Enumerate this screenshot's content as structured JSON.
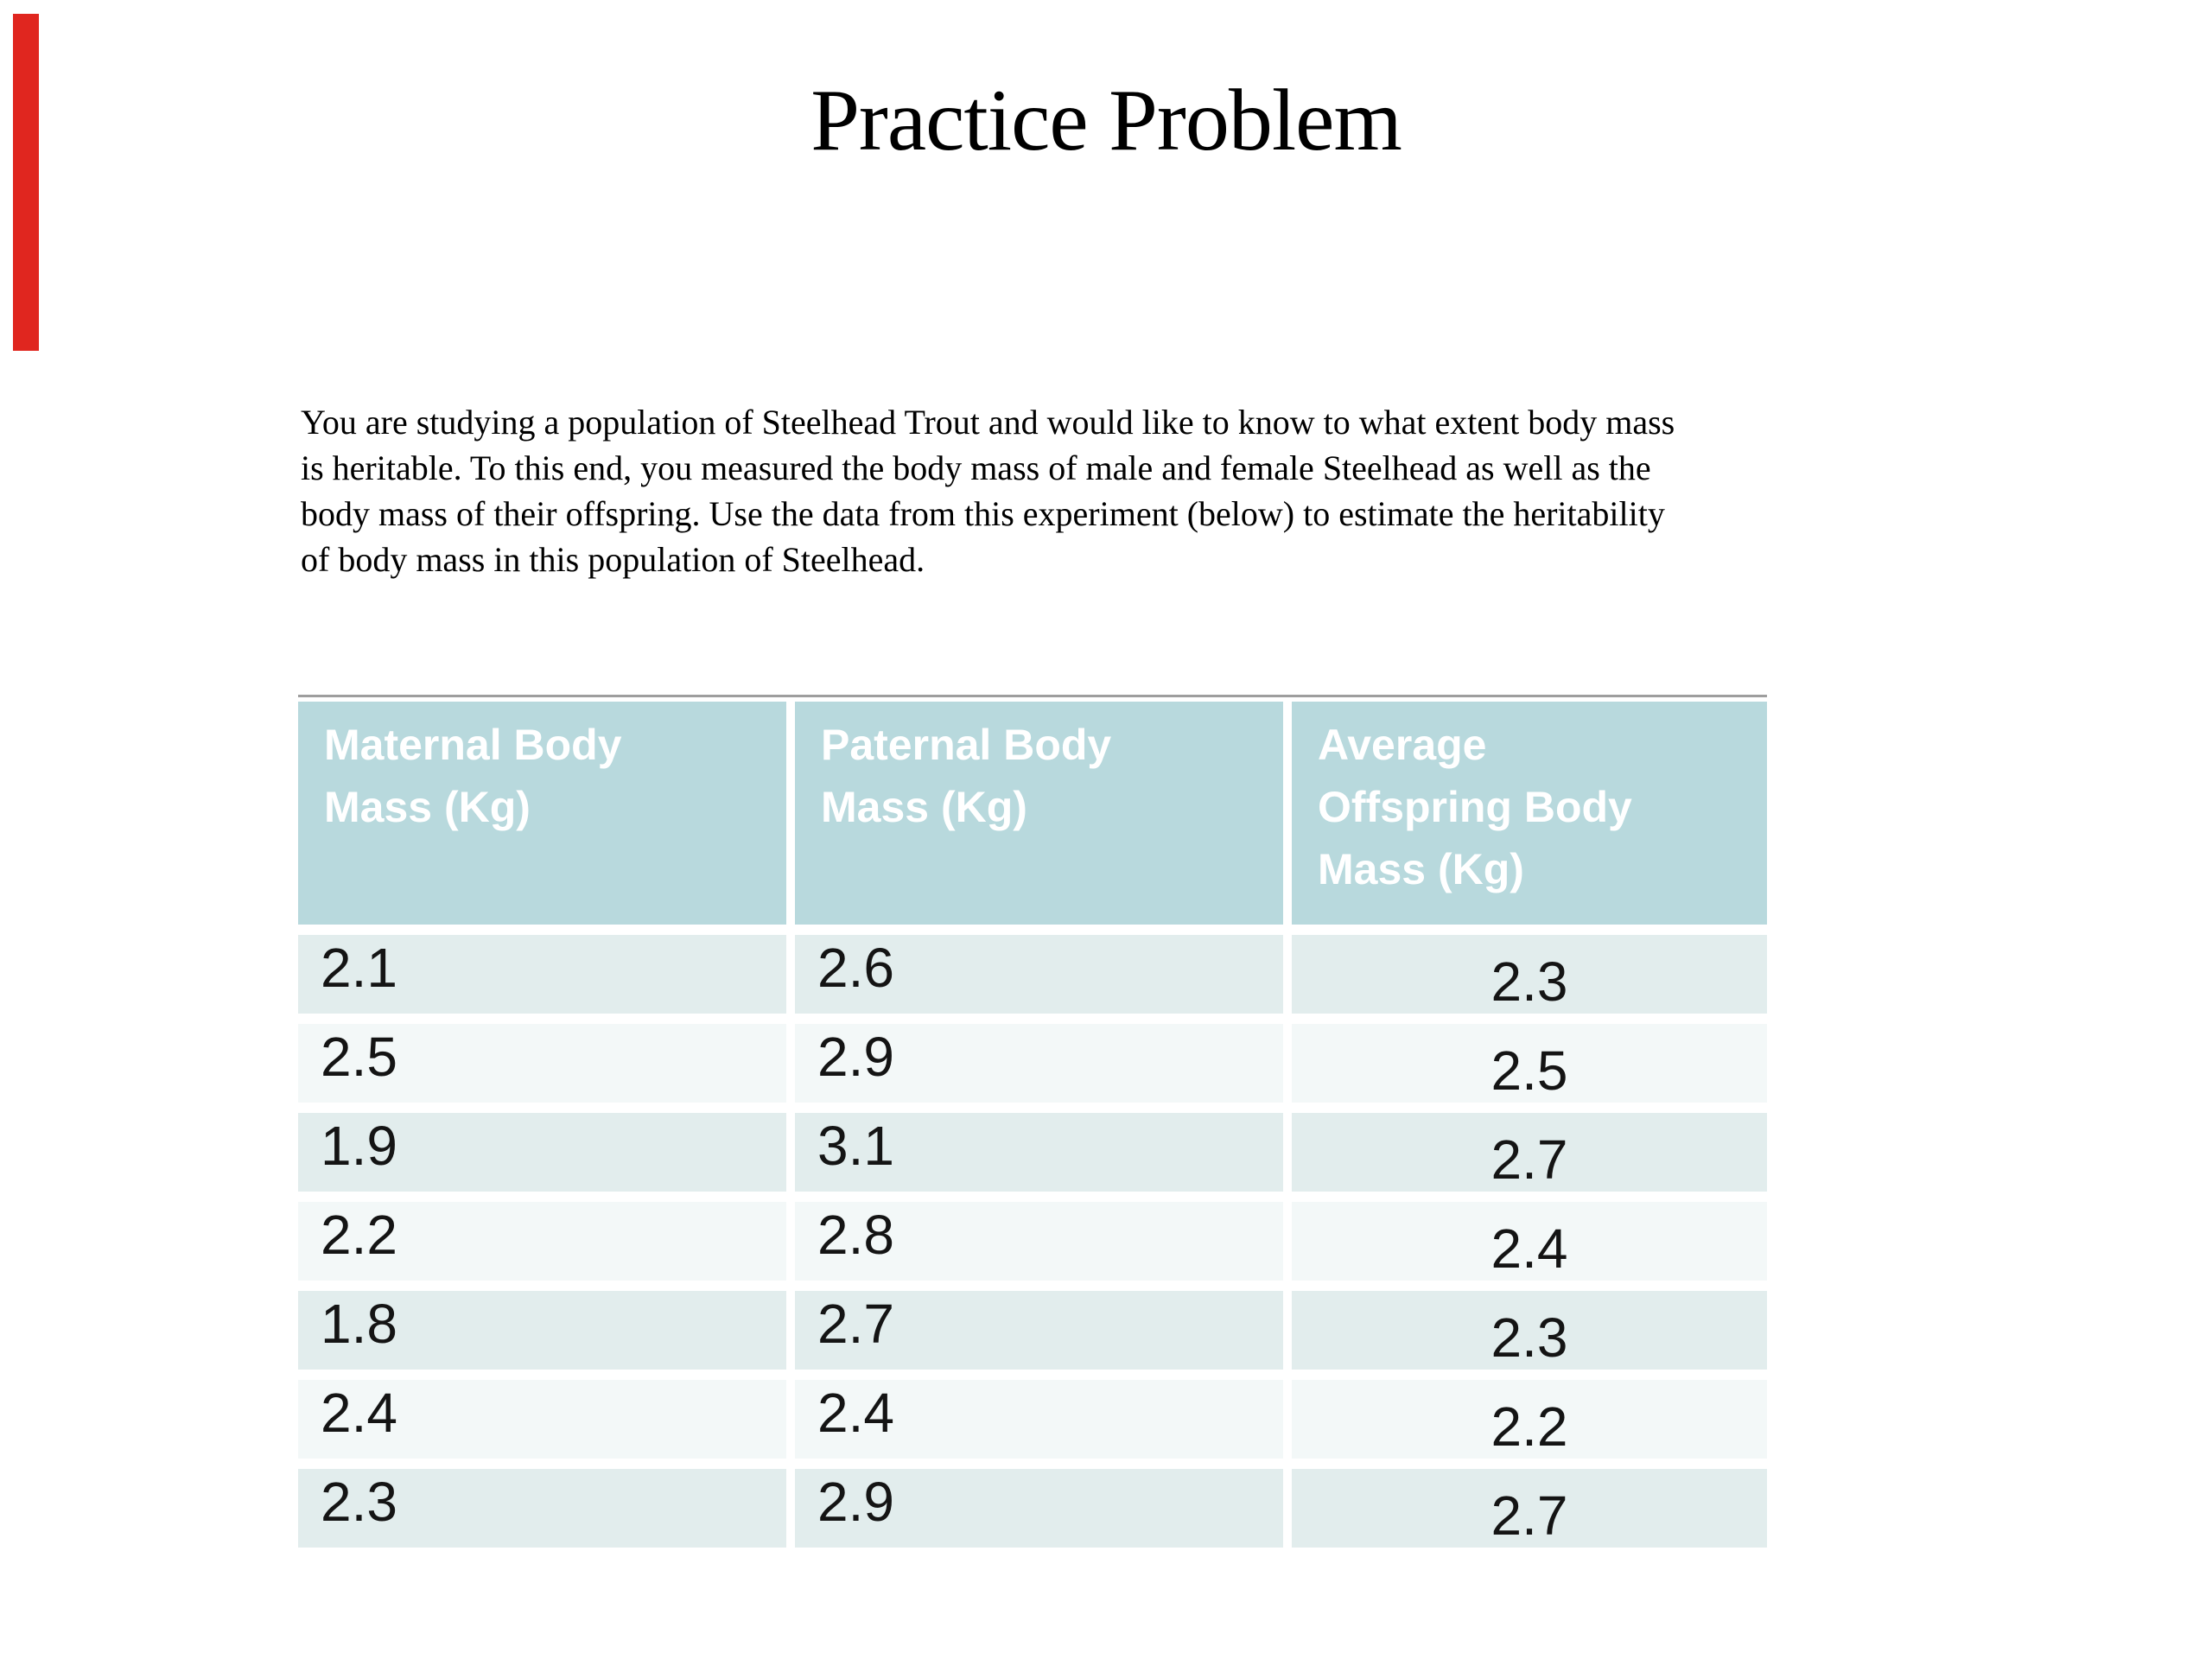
{
  "slide": {
    "title": "Practice Problem",
    "problem_text": "You are studying a population of Steelhead Trout and would like to know to what extent body mass\nis heritable. To this end, you measured the body mass of male and female Steelhead as well as the\nbody mass of their offspring. Use the data from this experiment (below) to estimate the heritability\nof body mass in this population of Steelhead."
  },
  "decor": {
    "red_bar_color": "#e0261f"
  },
  "table": {
    "headers": [
      "Maternal Body\nMass (Kg)",
      "Paternal Body\nMass (Kg)",
      "Average\nOffspring Body\nMass (Kg)"
    ],
    "rows": [
      [
        "2.1",
        "2.6",
        "2.3"
      ],
      [
        "2.5",
        "2.9",
        "2.5"
      ],
      [
        "1.9",
        "3.1",
        "2.7"
      ],
      [
        "2.2",
        "2.8",
        "2.4"
      ],
      [
        "1.8",
        "2.7",
        "2.3"
      ],
      [
        "2.4",
        "2.4",
        "2.2"
      ],
      [
        "2.3",
        "2.9",
        "2.7"
      ]
    ],
    "colors": {
      "header_bg": "#b8d9dd",
      "header_text": "#ffffff",
      "row_odd_bg": "#e2eded",
      "row_even_bg": "#f3f8f8",
      "cell_text": "#141414",
      "top_rule": "#9e9e9e"
    }
  }
}
